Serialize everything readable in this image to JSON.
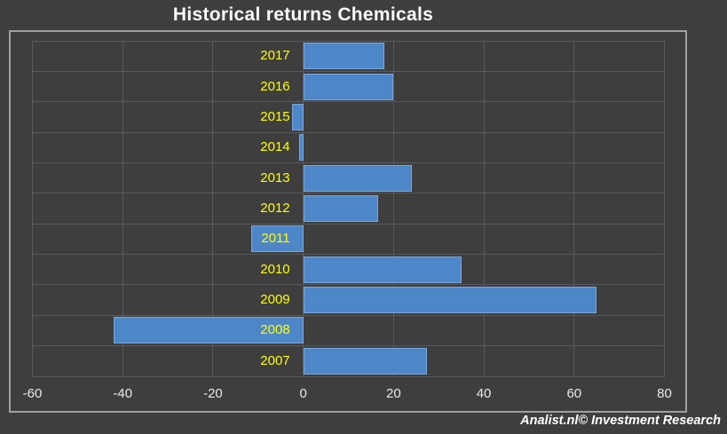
{
  "title": "Historical returns Chemicals",
  "credit": "Analist.nl© Investment Research",
  "chart_data": {
    "type": "bar",
    "orientation": "horizontal",
    "title": "Historical returns Chemicals",
    "categories": [
      "2017",
      "2016",
      "2015",
      "2014",
      "2013",
      "2012",
      "2011",
      "2010",
      "2009",
      "2008",
      "2007"
    ],
    "values": [
      18,
      20,
      -2.5,
      -1,
      24,
      16.5,
      -11.5,
      35,
      65,
      -42,
      27.5
    ],
    "xlabel": "",
    "ylabel": "",
    "xlim": [
      -60,
      80
    ],
    "xticks": [
      -60,
      -40,
      -20,
      0,
      20,
      40,
      60,
      80
    ],
    "grid": true,
    "legend": false,
    "colors": {
      "background": "#3E3E3E",
      "bar_fill": "#4E87C8",
      "bar_border": "#7AA7DB",
      "category_label": "#FFFF00",
      "tick_label": "#E8E8E8",
      "title": "#FAFAFA",
      "gridline": "#5A5A5A",
      "chart_border": "#A0A0A0",
      "credit": "#FFFFFF"
    }
  }
}
